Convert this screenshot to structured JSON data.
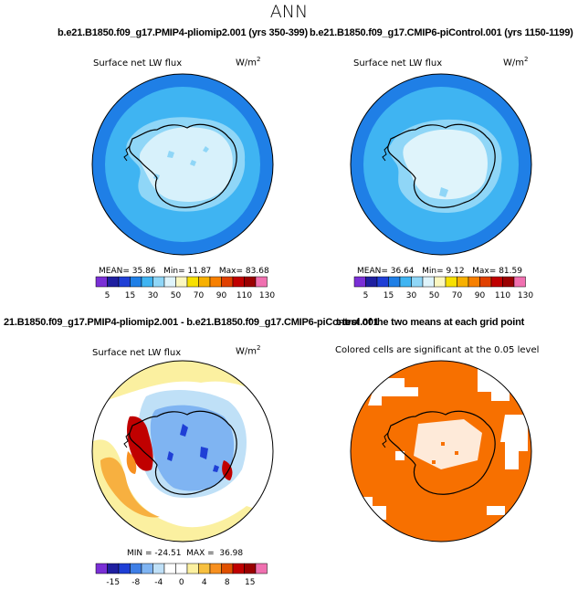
{
  "page": {
    "title": "ANN"
  },
  "panels": [
    {
      "title": "b.e21.B1850.f09_g17.PMIP4-pliomip2.001 (yrs 350-399)",
      "variable": "Surface net LW flux",
      "units": "W/m",
      "units_exp": "2",
      "stats": {
        "mean_label": "MEAN=",
        "mean": "35.86",
        "min_label": "Min=",
        "min": "11.87",
        "max_label": "Max=",
        "max": "83.68"
      }
    },
    {
      "title": "b.e21.B1850.f09_g17.CMIP6-piControl.001 (yrs 1150-1199)",
      "variable": "Surface net LW flux",
      "units": "W/m",
      "units_exp": "2",
      "stats": {
        "mean_label": "MEAN=",
        "mean": "36.64",
        "min_label": "Min=",
        "min": "9.12",
        "max_label": "Max=",
        "max": "81.59"
      }
    },
    {
      "title": "21.B1850.f09_g17.PMIP4-pliomip2.001 - b.e21.B1850.f09_g17.CMIP6-piControl.001",
      "variable": "Surface net LW flux",
      "units": "W/m",
      "units_exp": "2",
      "stats_text": "MIN = -24.51  MAX =  36.98"
    },
    {
      "title": "t-test of the two means at each grid point",
      "variable": "Colored cells are significant at the 0.05 level"
    }
  ],
  "colorbar_abs": {
    "colors": [
      "#7a2fd6",
      "#1f1fa0",
      "#1f3fd6",
      "#1f7fe6",
      "#3fb4f2",
      "#8fd6f7",
      "#dff4fb",
      "#fbf7c0",
      "#f7e000",
      "#f7b000",
      "#f78000",
      "#e04000",
      "#c00000",
      "#9a0000",
      "#f070b0"
    ],
    "labels": [
      "5",
      "15",
      "30",
      "50",
      "70",
      "90",
      "110",
      "130"
    ]
  },
  "colorbar_diff": {
    "colors": [
      "#7a2fd6",
      "#1f1fa0",
      "#1f3fd6",
      "#3f7fe6",
      "#7fb4f2",
      "#bfe0f7",
      "#ffffff",
      "#ffffff",
      "#fbf0a0",
      "#f7c040",
      "#f79020",
      "#e05000",
      "#c00000",
      "#9a0000",
      "#f070b0"
    ],
    "labels": [
      "-15",
      "-8",
      "-4",
      "0",
      "4",
      "8",
      "15"
    ]
  },
  "map_colors": {
    "ocean": "#3fb4f2",
    "ocean_far": "#1f7fe6",
    "ice_light": "#dff4fb",
    "ice_mid": "#8fd6f7",
    "diff_bg": "#ffffff",
    "diff_yellow": "#fbf0a0",
    "diff_orange": "#f7b040",
    "ttest": "#f77000"
  }
}
